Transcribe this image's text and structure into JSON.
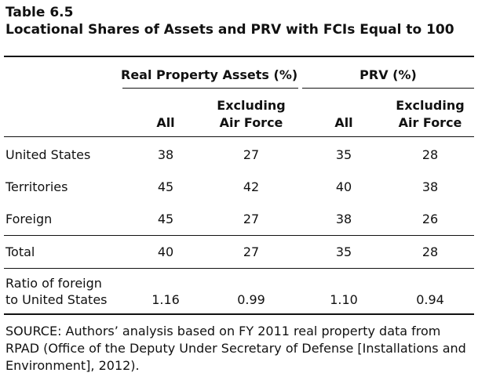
{
  "table": {
    "number": "Table 6.5",
    "title": "Locational Shares of Assets and PRV with FCIs Equal to 100",
    "group_headers": [
      "Real Property Assets (%)",
      "PRV (%)"
    ],
    "sub_headers": {
      "all": "All",
      "excl_line1": "Excluding",
      "excl_line2": "Air Force"
    },
    "rows": [
      {
        "label": "United States",
        "cells": [
          "38",
          "27",
          "35",
          "28"
        ]
      },
      {
        "label": "Territories",
        "cells": [
          "45",
          "42",
          "40",
          "38"
        ]
      },
      {
        "label": "Foreign",
        "cells": [
          "45",
          "27",
          "38",
          "26"
        ]
      },
      {
        "label": "Total",
        "cells": [
          "40",
          "27",
          "35",
          "28"
        ]
      }
    ],
    "ratio_row": {
      "label_line1": "Ratio of foreign",
      "label_line2": "to United States",
      "cells": [
        "1.16",
        "0.99",
        "1.10",
        "0.94"
      ]
    },
    "source": "SOURCE: Authors’ analysis based on FY 2011 real property data from RPAD (Office of the Deputy Under Secretary of Defense [Installations and Environment], 2012)."
  }
}
